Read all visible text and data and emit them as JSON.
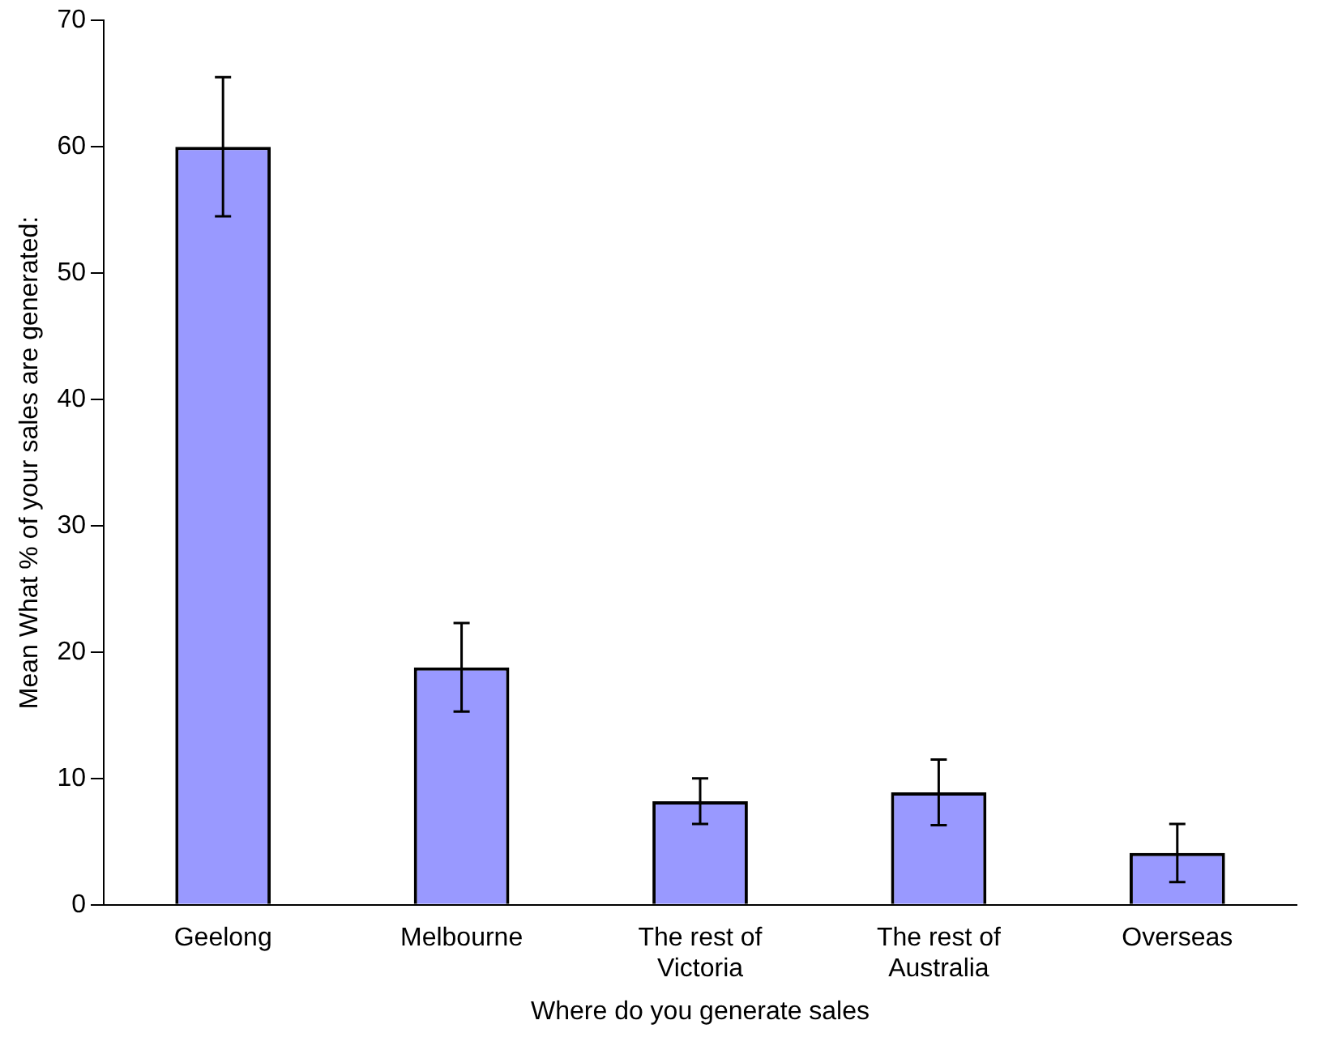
{
  "chart_data": {
    "type": "bar",
    "xlabel": "Where do you generate sales",
    "ylabel": "Mean What % of your sales are generated:",
    "categories": [
      "Geelong",
      "Melbourne",
      "The rest of Victoria",
      "The rest of Australia",
      "Overseas"
    ],
    "values": [
      60,
      18.8,
      8.2,
      8.9,
      4.1
    ],
    "errors": [
      5.5,
      3.5,
      1.8,
      2.6,
      2.3
    ],
    "color": "#9999ff",
    "ylim": [
      0,
      70
    ],
    "yticks": [
      0,
      10,
      20,
      30,
      40,
      50,
      60,
      70
    ],
    "grid": false,
    "legend": false
  }
}
